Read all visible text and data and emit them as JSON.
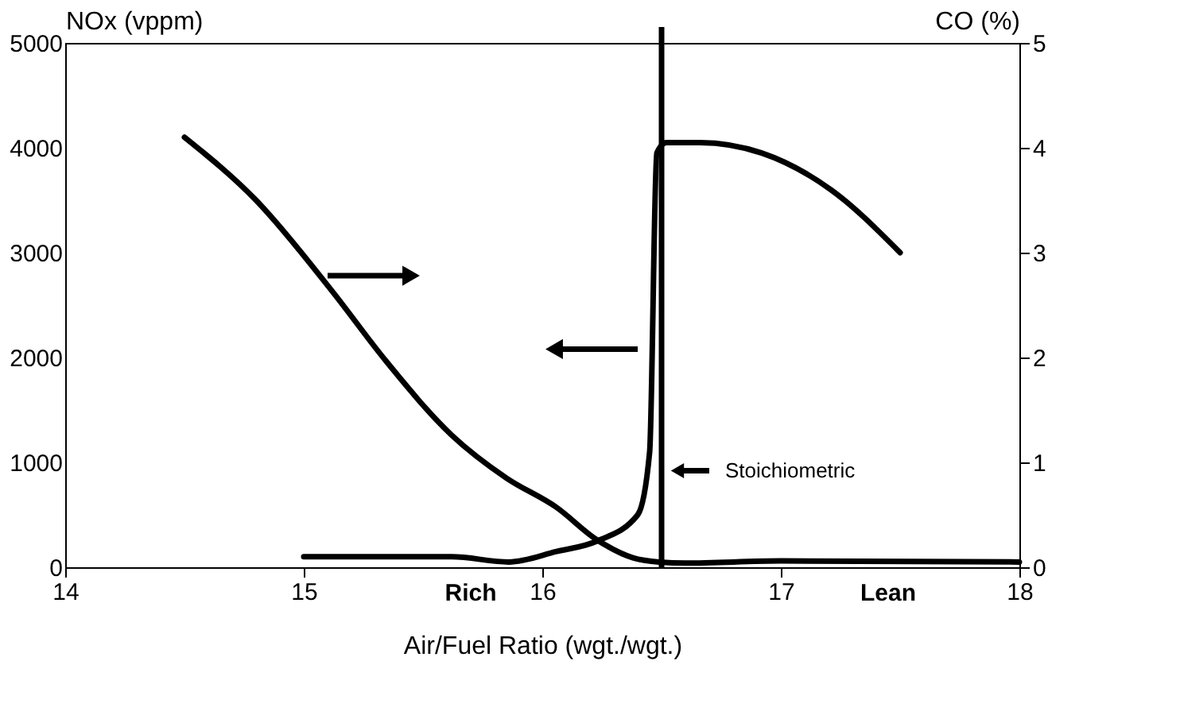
{
  "chart_data": {
    "type": "line",
    "xlabel": "Air/Fuel Ratio (wgt./wgt.)",
    "ylabel": "NOx (vppm)",
    "y2label": "CO (%)",
    "xlim": [
      14,
      18
    ],
    "xticks": [
      14,
      15,
      16,
      17,
      18
    ],
    "ylim": [
      0,
      5000
    ],
    "yticks": [
      0,
      1000,
      2000,
      3000,
      4000,
      5000
    ],
    "y2lim": [
      0,
      5
    ],
    "y2ticks": [
      0,
      1,
      2,
      3,
      4,
      5
    ],
    "grid": false,
    "line_style": "solid",
    "marker": "none",
    "series": [
      {
        "color": "#000000",
        "x": [
          15.0,
          15.3,
          15.62,
          15.86,
          16.06,
          16.23,
          16.4,
          16.45,
          16.48,
          16.52,
          16.66,
          16.92,
          17.21,
          17.5
        ],
        "values": [
          100,
          100,
          100,
          50,
          150,
          250,
          500,
          1100,
          3950,
          4050,
          4050,
          3950,
          3600,
          3000
        ]
      },
      {
        "color": "#000000",
        "axis": "y2",
        "x": [
          14.5,
          14.8,
          15.12,
          15.34,
          15.62,
          15.85,
          16.06,
          16.23,
          16.38,
          16.49,
          16.6,
          17.0,
          18.0
        ],
        "values": [
          4.1,
          3.5,
          2.63,
          1.98,
          1.26,
          0.85,
          0.57,
          0.26,
          0.09,
          0.05,
          0.04,
          0.06,
          0.05
        ]
      }
    ],
    "ref_lines": [
      {
        "axis": "x",
        "value": 16.5,
        "label": "Stoichiometric",
        "color": "#000000",
        "line_style": "solid"
      }
    ],
    "annotations": [
      "Rich",
      "Lean"
    ]
  }
}
